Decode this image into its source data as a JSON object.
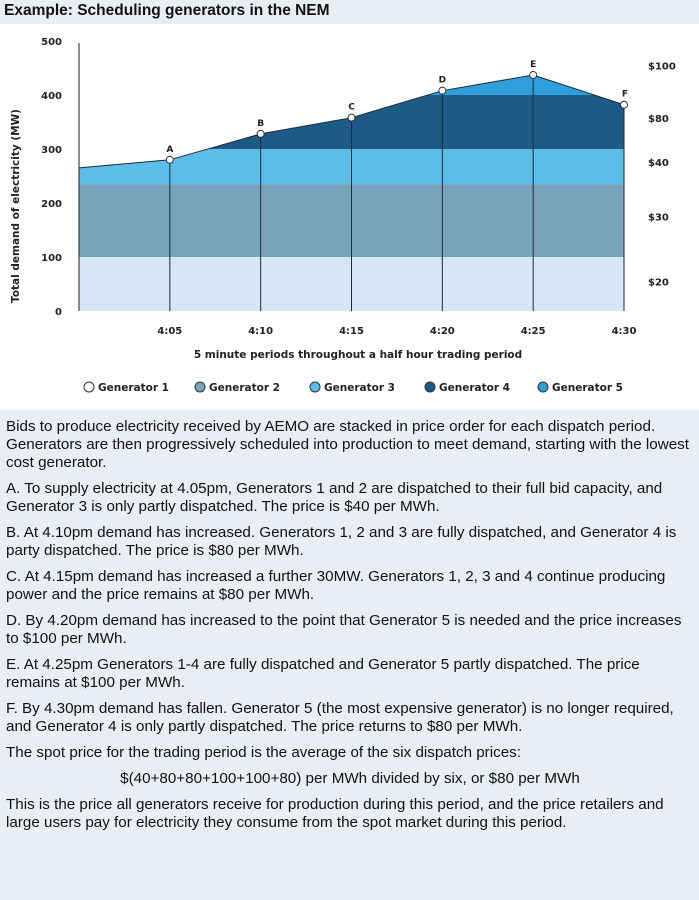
{
  "title": "Example: Scheduling generators in the NEM",
  "chart_data": {
    "type": "area",
    "ylabel": "Total demand of electricity (MW)",
    "xlabel": "5 minute periods throughout a half hour trading period",
    "ylim": [
      0,
      500
    ],
    "yticks": [
      "500",
      "400",
      "300",
      "200",
      "100",
      "0"
    ],
    "ytick_values": [
      500,
      400,
      300,
      200,
      100,
      0
    ],
    "x": [
      4.0,
      4.05,
      4.1,
      4.15,
      4.2,
      4.25,
      4.3
    ],
    "xtick_labels": [
      "4:05",
      "4:10",
      "4:15",
      "4:20",
      "4:25",
      "4:30"
    ],
    "xtick_values": [
      4.05,
      4.1,
      4.15,
      4.2,
      4.25,
      4.3
    ],
    "demand": [
      265,
      280,
      328,
      358,
      408,
      437,
      382
    ],
    "points": [
      {
        "label": "A",
        "x": 4.05,
        "y": 280
      },
      {
        "label": "B",
        "x": 4.1,
        "y": 328
      },
      {
        "label": "C",
        "x": 4.15,
        "y": 358
      },
      {
        "label": "D",
        "x": 4.2,
        "y": 408
      },
      {
        "label": "E",
        "x": 4.25,
        "y": 437
      },
      {
        "label": "F",
        "x": 4.3,
        "y": 382
      }
    ],
    "generators": [
      {
        "name": "Generator 1",
        "lower": 0,
        "upper": 100,
        "color": "#d6e6f5",
        "marker": "#ffffff",
        "price": "$20"
      },
      {
        "name": "Generator 2",
        "lower": 100,
        "upper": 235,
        "color": "#78a4bb",
        "marker": "#78a4bb",
        "price": "$30"
      },
      {
        "name": "Generator 3",
        "lower": 235,
        "upper": 300,
        "color": "#5cbde9",
        "marker": "#5cbde9",
        "price": "$40"
      },
      {
        "name": "Generator 4",
        "lower": 300,
        "upper": 400,
        "color": "#1e5a86",
        "marker": "#1e5a86",
        "price": "$80"
      },
      {
        "name": "Generator 5",
        "lower": 400,
        "upper": 500,
        "color": "#2f9fdb",
        "marker": "#2f9fdb",
        "price": "$100"
      }
    ],
    "price_labels": [
      {
        "text": "$100",
        "y": 455
      },
      {
        "text": "$80",
        "y": 357
      },
      {
        "text": "$40",
        "y": 276
      },
      {
        "text": "$30",
        "y": 175
      },
      {
        "text": "$20",
        "y": 55
      }
    ]
  },
  "paragraphs": [
    "Bids to produce electricity received by AEMO are stacked in price order for each dispatch period. Generators are then progressively scheduled into production to meet demand, starting with the lowest cost generator.",
    "A. To supply electricity at 4.05pm, Generators 1 and 2 are dispatched to their full bid capacity, and Generator 3 is only partly dispatched. The price is $40 per MWh.",
    "B. At 4.10pm demand has increased. Generators 1, 2 and 3 are fully dispatched, and Generator 4 is party dispatched. The price is $80 per MWh.",
    "C. At 4.15pm demand has increased a further 30MW. Generators 1, 2, 3 and 4 continue producing power and the price remains at $80 per MWh.",
    "D. By 4.20pm demand has increased to the point that Generator 5 is needed and the price increases to $100 per MWh.",
    "E. At 4.25pm Generators 1-4 are fully dispatched and Generator 5 partly dispatched. The price remains at $100 per MWh.",
    "F. By 4.30pm demand has fallen. Generator 5 (the most expensive generator) is no longer required, and Generator 4 is only partly dispatched. The price returns to $80 per MWh.",
    "The spot price for the trading period is the average of the six dispatch prices:"
  ],
  "formula": "$(40+80+80+100+100+80) per MWh divided by six, or $80 per MWh",
  "closing": "This is the price all generators receive for production during this period, and the price retailers and large users pay for electricity they consume from the spot market during this period."
}
